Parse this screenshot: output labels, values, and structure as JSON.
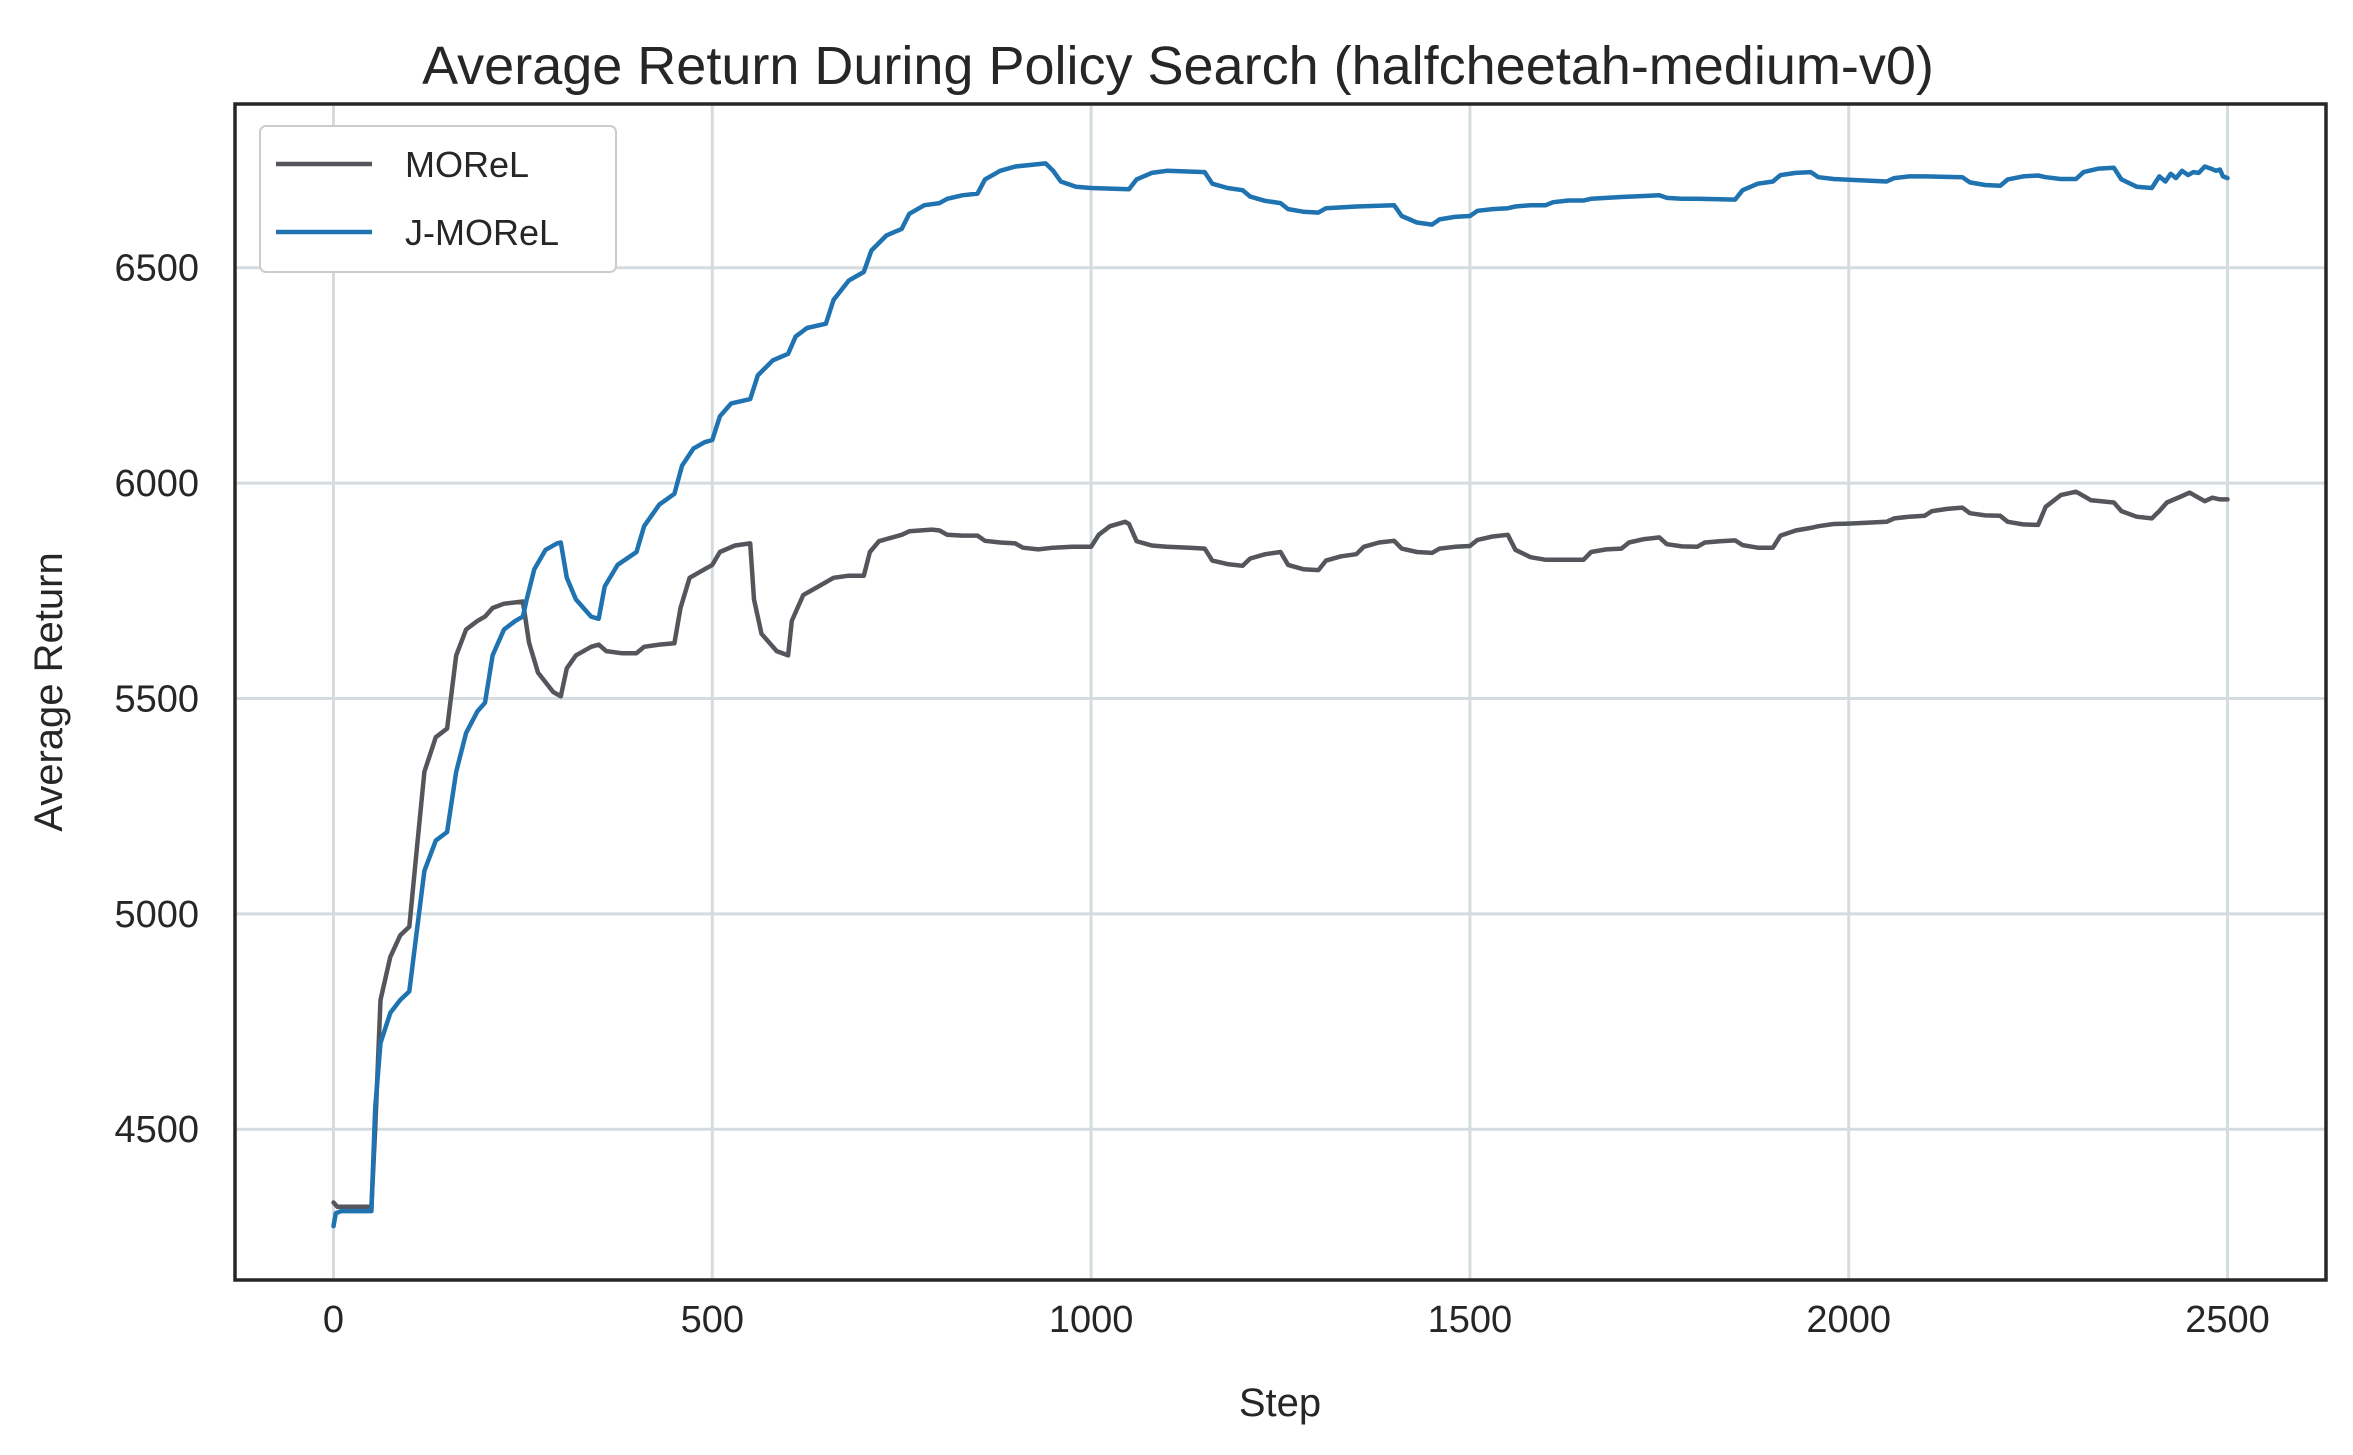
{
  "chart_data": {
    "type": "line",
    "title": "Average Return During Policy Search (halfcheetah-medium-v0)",
    "xlabel": "Step",
    "ylabel": "Average Return",
    "xlim": [
      -130,
      2630
    ],
    "ylim": [
      4150,
      6880
    ],
    "xticks": [
      0,
      500,
      1000,
      1500,
      2000,
      2500
    ],
    "yticks": [
      4500,
      5000,
      5500,
      6000,
      6500
    ],
    "xtick_labels": [
      "0",
      "500",
      "1000",
      "1500",
      "2000",
      "2500"
    ],
    "ytick_labels": [
      "4500",
      "5000",
      "5500",
      "6000",
      "6500"
    ],
    "grid": true,
    "legend_position": "top-left",
    "series": [
      {
        "name": "MOReL",
        "color": "#55565b",
        "points": [
          [
            0,
            4330
          ],
          [
            5,
            4320
          ],
          [
            50,
            4320
          ],
          [
            55,
            4500
          ],
          [
            62,
            4800
          ],
          [
            75,
            4900
          ],
          [
            88,
            4950
          ],
          [
            100,
            4970
          ],
          [
            110,
            5150
          ],
          [
            120,
            5330
          ],
          [
            135,
            5410
          ],
          [
            150,
            5430
          ],
          [
            162,
            5600
          ],
          [
            175,
            5660
          ],
          [
            190,
            5680
          ],
          [
            200,
            5690
          ],
          [
            210,
            5710
          ],
          [
            225,
            5720
          ],
          [
            250,
            5725
          ],
          [
            258,
            5630
          ],
          [
            270,
            5560
          ],
          [
            290,
            5515
          ],
          [
            300,
            5505
          ],
          [
            308,
            5570
          ],
          [
            320,
            5600
          ],
          [
            340,
            5620
          ],
          [
            350,
            5625
          ],
          [
            360,
            5610
          ],
          [
            380,
            5605
          ],
          [
            400,
            5605
          ],
          [
            410,
            5620
          ],
          [
            430,
            5625
          ],
          [
            450,
            5628
          ],
          [
            458,
            5710
          ],
          [
            470,
            5780
          ],
          [
            490,
            5800
          ],
          [
            500,
            5810
          ],
          [
            510,
            5840
          ],
          [
            530,
            5855
          ],
          [
            550,
            5860
          ],
          [
            555,
            5730
          ],
          [
            565,
            5650
          ],
          [
            585,
            5610
          ],
          [
            600,
            5600
          ],
          [
            605,
            5680
          ],
          [
            620,
            5740
          ],
          [
            640,
            5760
          ],
          [
            650,
            5770
          ],
          [
            660,
            5780
          ],
          [
            680,
            5785
          ],
          [
            700,
            5785
          ],
          [
            708,
            5840
          ],
          [
            720,
            5865
          ],
          [
            740,
            5875
          ],
          [
            750,
            5880
          ],
          [
            760,
            5888
          ],
          [
            790,
            5892
          ],
          [
            800,
            5890
          ],
          [
            810,
            5880
          ],
          [
            830,
            5878
          ],
          [
            850,
            5878
          ],
          [
            860,
            5866
          ],
          [
            880,
            5862
          ],
          [
            900,
            5860
          ],
          [
            910,
            5850
          ],
          [
            930,
            5846
          ],
          [
            950,
            5850
          ],
          [
            975,
            5852
          ],
          [
            1000,
            5852
          ],
          [
            1010,
            5880
          ],
          [
            1025,
            5900
          ],
          [
            1045,
            5910
          ],
          [
            1050,
            5905
          ],
          [
            1060,
            5865
          ],
          [
            1080,
            5855
          ],
          [
            1100,
            5852
          ],
          [
            1130,
            5850
          ],
          [
            1150,
            5848
          ],
          [
            1160,
            5820
          ],
          [
            1180,
            5812
          ],
          [
            1200,
            5808
          ],
          [
            1210,
            5825
          ],
          [
            1230,
            5835
          ],
          [
            1250,
            5840
          ],
          [
            1260,
            5810
          ],
          [
            1280,
            5800
          ],
          [
            1300,
            5798
          ],
          [
            1310,
            5820
          ],
          [
            1330,
            5830
          ],
          [
            1350,
            5835
          ],
          [
            1360,
            5852
          ],
          [
            1380,
            5862
          ],
          [
            1400,
            5866
          ],
          [
            1410,
            5848
          ],
          [
            1430,
            5840
          ],
          [
            1450,
            5838
          ],
          [
            1460,
            5848
          ],
          [
            1480,
            5852
          ],
          [
            1500,
            5854
          ],
          [
            1510,
            5868
          ],
          [
            1530,
            5876
          ],
          [
            1550,
            5880
          ],
          [
            1560,
            5845
          ],
          [
            1580,
            5828
          ],
          [
            1600,
            5822
          ],
          [
            1650,
            5822
          ],
          [
            1660,
            5840
          ],
          [
            1680,
            5846
          ],
          [
            1700,
            5848
          ],
          [
            1710,
            5862
          ],
          [
            1730,
            5870
          ],
          [
            1750,
            5874
          ],
          [
            1760,
            5858
          ],
          [
            1780,
            5853
          ],
          [
            1800,
            5852
          ],
          [
            1810,
            5862
          ],
          [
            1830,
            5865
          ],
          [
            1850,
            5867
          ],
          [
            1860,
            5856
          ],
          [
            1880,
            5850
          ],
          [
            1900,
            5850
          ],
          [
            1910,
            5878
          ],
          [
            1930,
            5890
          ],
          [
            1950,
            5896
          ],
          [
            1960,
            5900
          ],
          [
            1980,
            5905
          ],
          [
            2000,
            5906
          ],
          [
            2050,
            5910
          ],
          [
            2060,
            5918
          ],
          [
            2080,
            5922
          ],
          [
            2100,
            5924
          ],
          [
            2110,
            5935
          ],
          [
            2130,
            5940
          ],
          [
            2150,
            5943
          ],
          [
            2160,
            5930
          ],
          [
            2180,
            5925
          ],
          [
            2200,
            5924
          ],
          [
            2210,
            5910
          ],
          [
            2230,
            5904
          ],
          [
            2250,
            5903
          ],
          [
            2260,
            5945
          ],
          [
            2280,
            5972
          ],
          [
            2300,
            5980
          ],
          [
            2305,
            5975
          ],
          [
            2320,
            5960
          ],
          [
            2350,
            5955
          ],
          [
            2360,
            5935
          ],
          [
            2380,
            5922
          ],
          [
            2400,
            5918
          ],
          [
            2410,
            5935
          ],
          [
            2420,
            5955
          ],
          [
            2440,
            5970
          ],
          [
            2450,
            5978
          ],
          [
            2460,
            5968
          ],
          [
            2470,
            5958
          ],
          [
            2480,
            5966
          ],
          [
            2490,
            5962
          ],
          [
            2500,
            5962
          ]
        ]
      },
      {
        "name": "J-MOReL",
        "color": "#1f73b0",
        "points": [
          [
            0,
            4275
          ],
          [
            3,
            4305
          ],
          [
            10,
            4310
          ],
          [
            50,
            4310
          ],
          [
            55,
            4550
          ],
          [
            62,
            4700
          ],
          [
            75,
            4770
          ],
          [
            88,
            4800
          ],
          [
            100,
            4820
          ],
          [
            110,
            4960
          ],
          [
            120,
            5100
          ],
          [
            135,
            5170
          ],
          [
            150,
            5190
          ],
          [
            162,
            5330
          ],
          [
            175,
            5420
          ],
          [
            190,
            5470
          ],
          [
            200,
            5490
          ],
          [
            210,
            5600
          ],
          [
            225,
            5660
          ],
          [
            240,
            5680
          ],
          [
            250,
            5690
          ],
          [
            255,
            5730
          ],
          [
            265,
            5800
          ],
          [
            280,
            5845
          ],
          [
            295,
            5860
          ],
          [
            300,
            5862
          ],
          [
            308,
            5780
          ],
          [
            320,
            5730
          ],
          [
            340,
            5690
          ],
          [
            350,
            5685
          ],
          [
            358,
            5760
          ],
          [
            375,
            5810
          ],
          [
            400,
            5840
          ],
          [
            410,
            5900
          ],
          [
            430,
            5950
          ],
          [
            450,
            5975
          ],
          [
            460,
            6040
          ],
          [
            475,
            6080
          ],
          [
            490,
            6095
          ],
          [
            500,
            6100
          ],
          [
            510,
            6155
          ],
          [
            525,
            6185
          ],
          [
            550,
            6195
          ],
          [
            560,
            6250
          ],
          [
            580,
            6285
          ],
          [
            600,
            6300
          ],
          [
            610,
            6340
          ],
          [
            625,
            6360
          ],
          [
            650,
            6370
          ],
          [
            660,
            6425
          ],
          [
            680,
            6470
          ],
          [
            700,
            6490
          ],
          [
            710,
            6540
          ],
          [
            730,
            6575
          ],
          [
            750,
            6590
          ],
          [
            760,
            6625
          ],
          [
            780,
            6645
          ],
          [
            800,
            6650
          ],
          [
            810,
            6660
          ],
          [
            830,
            6668
          ],
          [
            850,
            6672
          ],
          [
            860,
            6705
          ],
          [
            880,
            6725
          ],
          [
            900,
            6735
          ],
          [
            940,
            6742
          ],
          [
            950,
            6725
          ],
          [
            960,
            6700
          ],
          [
            980,
            6688
          ],
          [
            1000,
            6685
          ],
          [
            1050,
            6682
          ],
          [
            1060,
            6705
          ],
          [
            1080,
            6720
          ],
          [
            1100,
            6725
          ],
          [
            1150,
            6722
          ],
          [
            1160,
            6695
          ],
          [
            1180,
            6685
          ],
          [
            1200,
            6680
          ],
          [
            1210,
            6665
          ],
          [
            1230,
            6655
          ],
          [
            1250,
            6650
          ],
          [
            1260,
            6636
          ],
          [
            1280,
            6630
          ],
          [
            1300,
            6628
          ],
          [
            1310,
            6638
          ],
          [
            1330,
            6640
          ],
          [
            1350,
            6642
          ],
          [
            1400,
            6645
          ],
          [
            1410,
            6620
          ],
          [
            1430,
            6605
          ],
          [
            1450,
            6600
          ],
          [
            1460,
            6612
          ],
          [
            1480,
            6618
          ],
          [
            1500,
            6620
          ],
          [
            1510,
            6632
          ],
          [
            1530,
            6636
          ],
          [
            1550,
            6638
          ],
          [
            1560,
            6642
          ],
          [
            1580,
            6645
          ],
          [
            1600,
            6645
          ],
          [
            1610,
            6652
          ],
          [
            1630,
            6656
          ],
          [
            1650,
            6656
          ],
          [
            1660,
            6660
          ],
          [
            1680,
            6662
          ],
          [
            1700,
            6664
          ],
          [
            1750,
            6668
          ],
          [
            1760,
            6662
          ],
          [
            1780,
            6660
          ],
          [
            1800,
            6660
          ],
          [
            1850,
            6658
          ],
          [
            1860,
            6680
          ],
          [
            1880,
            6695
          ],
          [
            1900,
            6700
          ],
          [
            1910,
            6715
          ],
          [
            1930,
            6720
          ],
          [
            1950,
            6722
          ],
          [
            1960,
            6710
          ],
          [
            1980,
            6706
          ],
          [
            2000,
            6704
          ],
          [
            2050,
            6700
          ],
          [
            2060,
            6708
          ],
          [
            2080,
            6712
          ],
          [
            2100,
            6712
          ],
          [
            2150,
            6710
          ],
          [
            2160,
            6698
          ],
          [
            2180,
            6692
          ],
          [
            2200,
            6690
          ],
          [
            2210,
            6705
          ],
          [
            2230,
            6712
          ],
          [
            2250,
            6714
          ],
          [
            2260,
            6710
          ],
          [
            2280,
            6706
          ],
          [
            2300,
            6706
          ],
          [
            2310,
            6722
          ],
          [
            2330,
            6730
          ],
          [
            2350,
            6732
          ],
          [
            2360,
            6705
          ],
          [
            2380,
            6688
          ],
          [
            2400,
            6685
          ],
          [
            2410,
            6712
          ],
          [
            2418,
            6700
          ],
          [
            2425,
            6718
          ],
          [
            2432,
            6708
          ],
          [
            2440,
            6725
          ],
          [
            2448,
            6715
          ],
          [
            2455,
            6722
          ],
          [
            2462,
            6720
          ],
          [
            2470,
            6735
          ],
          [
            2478,
            6730
          ],
          [
            2485,
            6725
          ],
          [
            2490,
            6728
          ],
          [
            2494,
            6712
          ],
          [
            2500,
            6708
          ]
        ]
      }
    ]
  }
}
